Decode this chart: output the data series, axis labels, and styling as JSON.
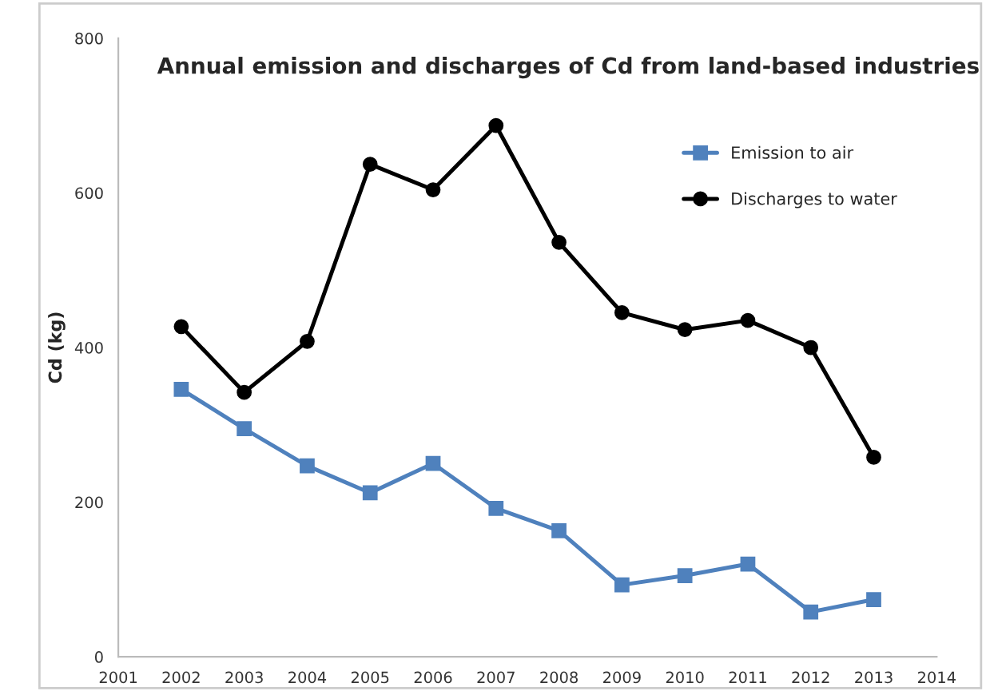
{
  "chart_data": {
    "type": "line",
    "title": "Annual emission and discharges of Cd from land-based industries",
    "ylabel": "Cd (kg)",
    "x": [
      2002,
      2003,
      2004,
      2005,
      2006,
      2007,
      2008,
      2009,
      2010,
      2011,
      2012,
      2013
    ],
    "series": [
      {
        "name": "Emission to air",
        "color": "#4f81bd",
        "marker": "square",
        "values": [
          346,
          295,
          247,
          212,
          250,
          192,
          163,
          93,
          105,
          120,
          58,
          74
        ]
      },
      {
        "name": "Discharges to water",
        "color": "#000000",
        "marker": "circle",
        "values": [
          427,
          342,
          408,
          637,
          604,
          687,
          536,
          445,
          423,
          435,
          400,
          258
        ]
      }
    ],
    "xlim": [
      2001,
      2014
    ],
    "xticks": [
      2001,
      2002,
      2003,
      2004,
      2005,
      2006,
      2007,
      2008,
      2009,
      2010,
      2011,
      2012,
      2013,
      2014
    ],
    "ylim": [
      0,
      800
    ],
    "yticks": [
      0,
      200,
      400,
      600,
      800
    ],
    "grid": false,
    "legend": "top right"
  }
}
